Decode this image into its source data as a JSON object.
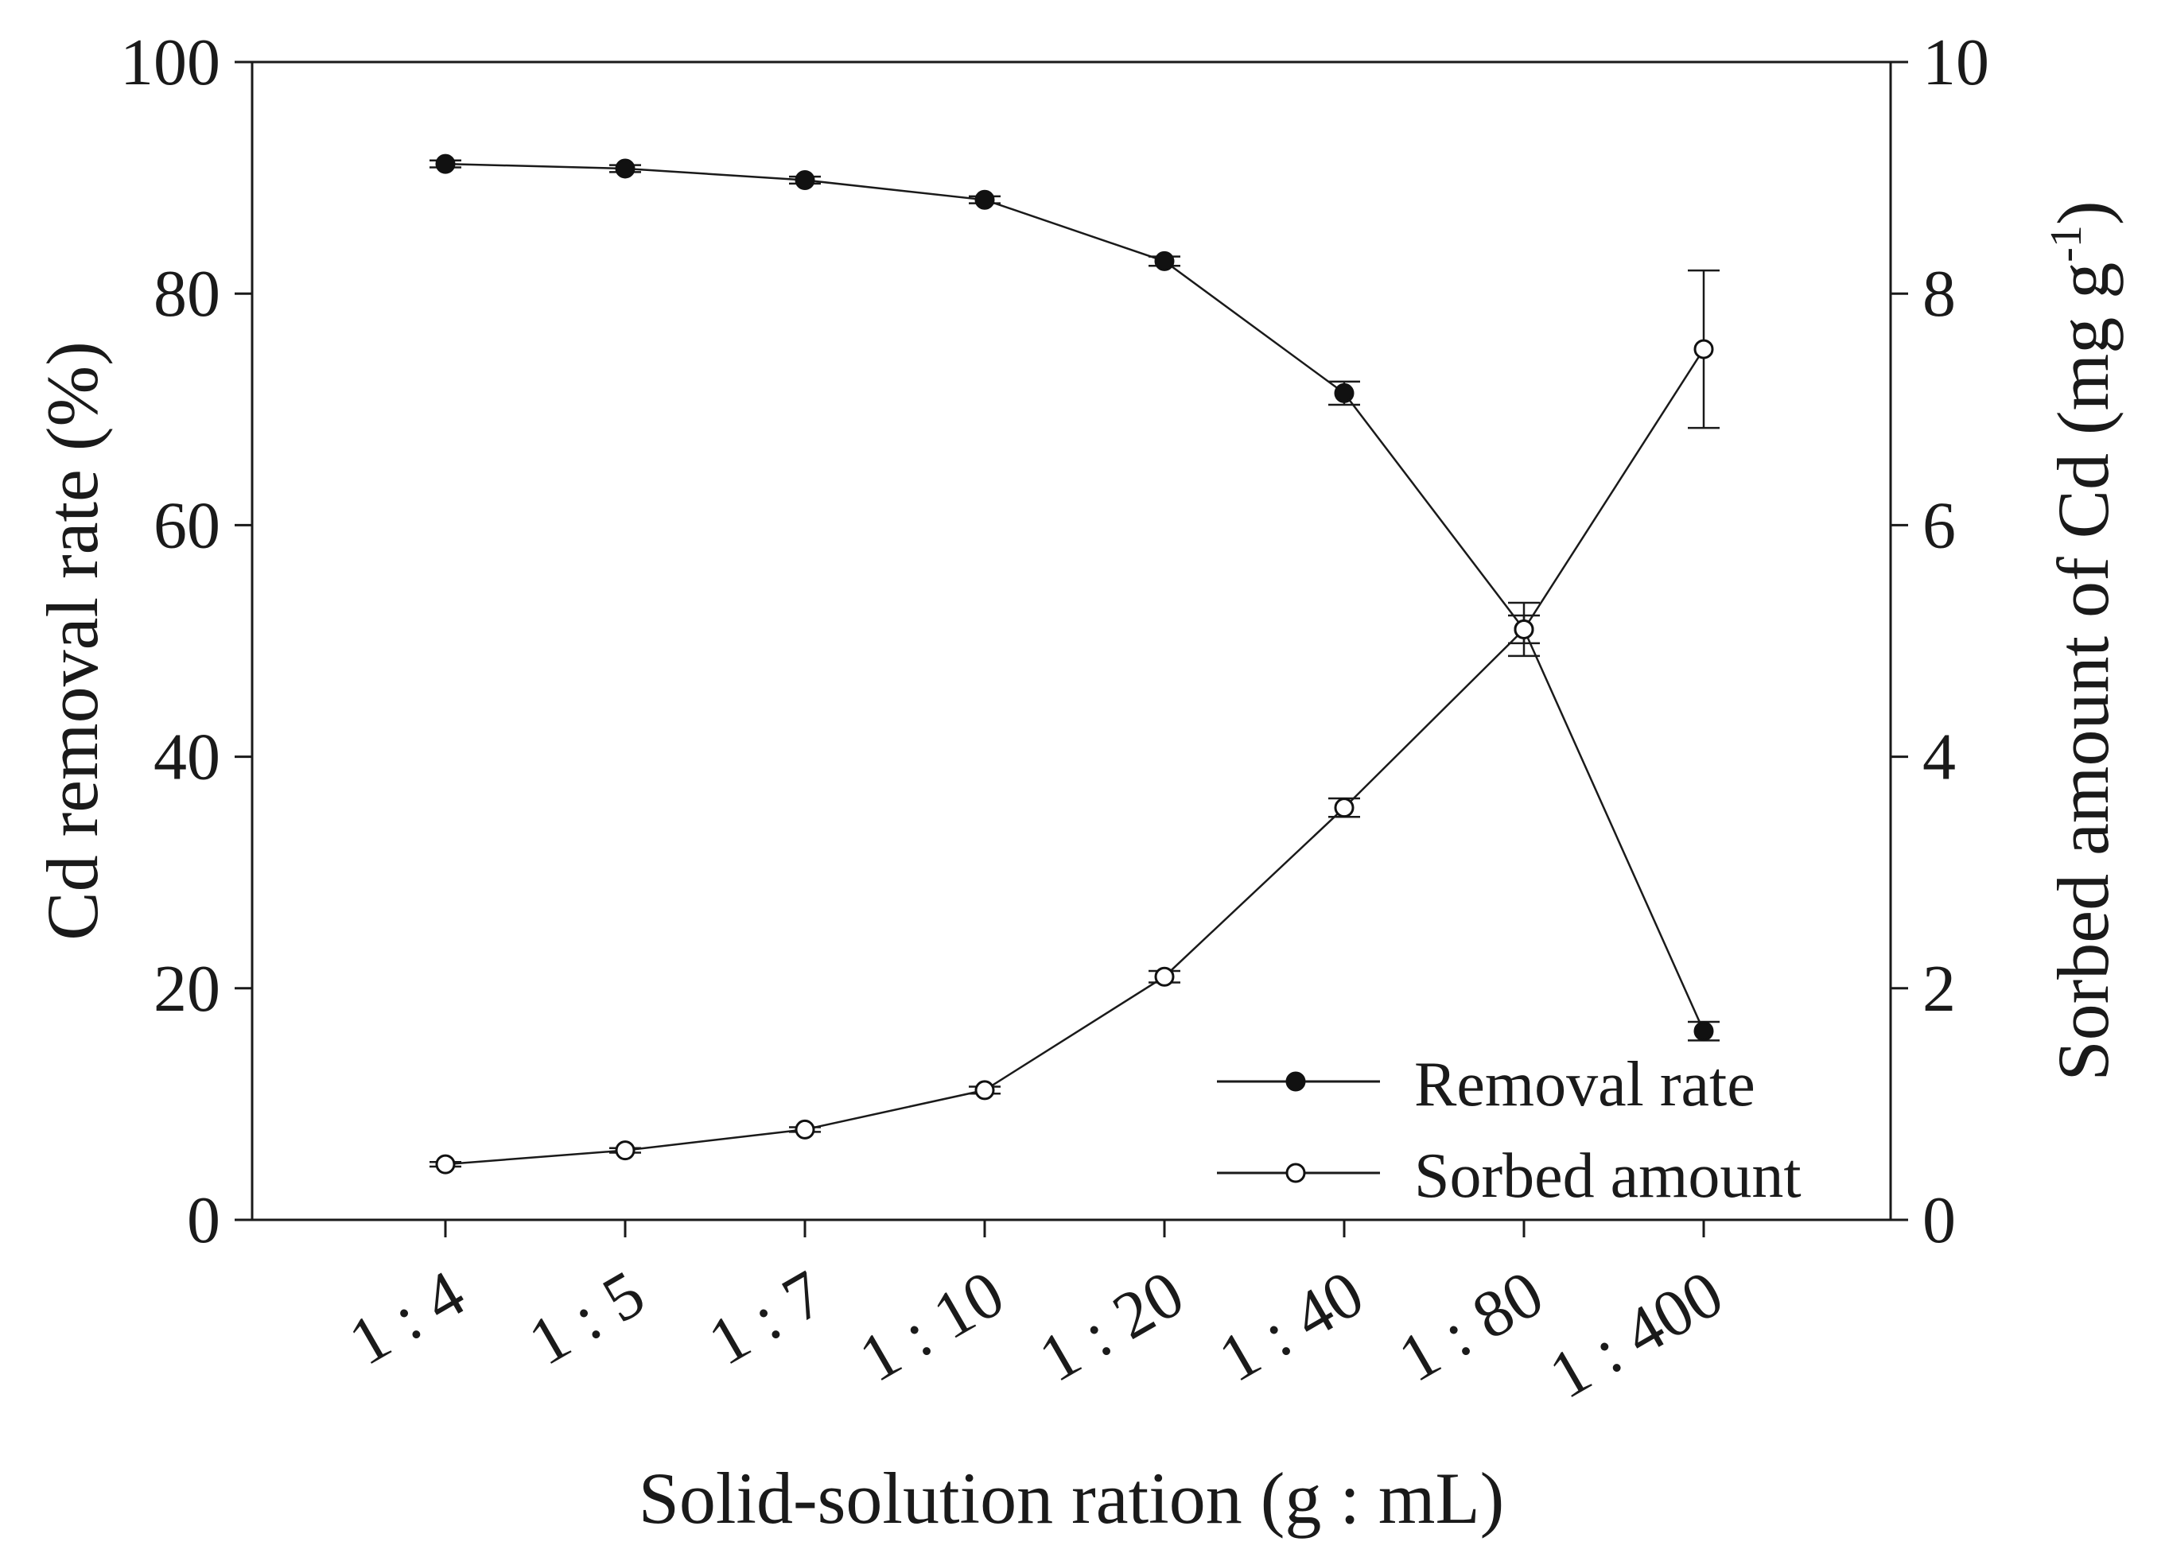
{
  "chart_data": {
    "type": "line",
    "categories": [
      "1 : 4",
      "1 : 5",
      "1 : 7",
      "1 : 10",
      "1 : 20",
      "1 : 40",
      "1 : 80",
      "1 : 400"
    ],
    "xlabel": "Solid-solution ration (g : mL)",
    "ylabel_left": "Cd removal rate (%)",
    "ylabel_right_main": "Sorbed amount of Cd (mg g",
    "ylabel_right_sup": "-1",
    "ylabel_right_close": ")",
    "ylim_left": [
      0,
      100
    ],
    "yticks_left": [
      "0",
      "20",
      "40",
      "60",
      "80",
      "100"
    ],
    "ylim_right": [
      0,
      10
    ],
    "yticks_right": [
      "0",
      "2",
      "4",
      "6",
      "8",
      "10"
    ],
    "grid": false,
    "legend_position": "bottom-right",
    "series": [
      {
        "name": "Removal rate",
        "axis": "left",
        "marker": "filled-circle",
        "values": [
          91.2,
          90.8,
          89.8,
          88.1,
          82.8,
          71.4,
          51.0,
          16.3
        ],
        "errors": [
          0.3,
          0.3,
          0.3,
          0.3,
          0.4,
          1.0,
          1.2,
          0.8
        ]
      },
      {
        "name": "Sorbed amount",
        "axis": "right",
        "marker": "open-circle",
        "values": [
          0.48,
          0.6,
          0.78,
          1.12,
          2.1,
          3.56,
          5.1,
          7.52
        ],
        "errors": [
          0.02,
          0.02,
          0.02,
          0.03,
          0.05,
          0.08,
          0.23,
          0.68
        ]
      }
    ]
  }
}
